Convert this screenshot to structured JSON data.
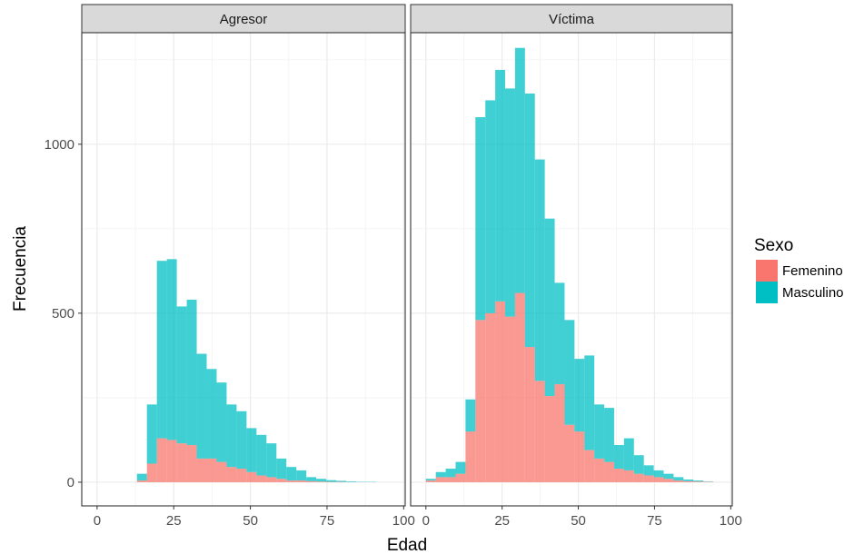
{
  "chart_data": {
    "type": "bar",
    "subtype": "stacked-histogram",
    "facet_variable": "rol",
    "xlabel": "Edad",
    "ylabel": "Frecuencia",
    "xlim": [
      0,
      100
    ],
    "ylim": [
      0,
      1300
    ],
    "x_ticks": [
      0,
      25,
      50,
      75,
      100
    ],
    "y_ticks": [
      0,
      500,
      1000
    ],
    "grid": true,
    "legend": {
      "title": "Sexo",
      "placement": "right",
      "entries": [
        {
          "name": "Femenino",
          "color": "#F8766D"
        },
        {
          "name": "Masculino",
          "color": "#00BFC4"
        }
      ]
    },
    "bins": [
      0,
      3.25,
      6.5,
      9.75,
      13,
      16.25,
      19.5,
      22.75,
      26,
      29.25,
      32.5,
      35.75,
      39,
      42.25,
      45.5,
      48.75,
      52,
      55.25,
      58.5,
      61.75,
      65,
      68.25,
      71.5,
      74.75,
      78,
      81.25,
      84.5,
      87.75,
      91,
      94.25,
      97.5
    ],
    "panels": [
      {
        "title": "Agresor",
        "series": [
          {
            "name": "Femenino",
            "values": [
              0,
              0,
              0,
              0,
              5,
              55,
              130,
              125,
              115,
              110,
              70,
              70,
              60,
              45,
              40,
              30,
              20,
              15,
              10,
              5,
              5,
              3,
              2,
              1,
              1,
              0,
              0,
              0,
              0,
              0
            ]
          },
          {
            "name": "Masculino",
            "values": [
              0,
              0,
              0,
              0,
              20,
              175,
              525,
              535,
              405,
              430,
              310,
              265,
              235,
              185,
              170,
              130,
              120,
              100,
              60,
              40,
              30,
              12,
              8,
              5,
              3,
              2,
              1,
              1,
              0,
              0
            ]
          }
        ]
      },
      {
        "title": "Víctima",
        "series": [
          {
            "name": "Femenino",
            "values": [
              5,
              15,
              15,
              25,
              150,
              480,
              500,
              535,
              490,
              560,
              400,
              300,
              255,
              290,
              170,
              150,
              95,
              70,
              60,
              40,
              35,
              25,
              20,
              15,
              10,
              5,
              3,
              2,
              1,
              0
            ]
          },
          {
            "name": "Masculino",
            "values": [
              5,
              15,
              25,
              35,
              95,
              600,
              630,
              685,
              675,
              725,
              750,
              655,
              525,
              300,
              310,
              215,
              280,
              160,
              160,
              70,
              95,
              55,
              30,
              20,
              15,
              10,
              5,
              3,
              1,
              0
            ]
          }
        ]
      }
    ]
  }
}
